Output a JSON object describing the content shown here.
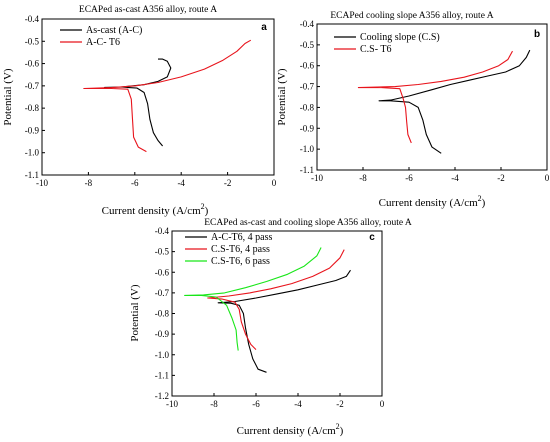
{
  "chart_data": [
    {
      "type": "line",
      "panel_label": "a",
      "title": "ECAPed as-cast A356 alloy, route A",
      "xlabel": "Current density (A/cm2)",
      "xlabel_main": "Current density (A/cm",
      "xlabel_sup": "2",
      "xlabel_end": ")",
      "ylabel": "Potential (V)",
      "xlim": [
        -10,
        0
      ],
      "ylim": [
        -1.1,
        -0.4
      ],
      "xticks": [
        "-10",
        "-8",
        "-6",
        "-4",
        "-2",
        "0"
      ],
      "xtick_values": [
        -10,
        -8,
        -6,
        -4,
        -2,
        0
      ],
      "yticks": [
        "-1.1",
        "-1.0",
        "-0.9",
        "-0.8",
        "-0.7",
        "-0.6",
        "-0.5",
        "-0.4"
      ],
      "ytick_values": [
        -1.1,
        -1.0,
        -0.9,
        -0.8,
        -0.7,
        -0.6,
        -0.5,
        -0.4
      ],
      "legend_position": "top-left",
      "series": [
        {
          "name": "As-cast (A-C)",
          "color": "#000000",
          "points": [
            [
              -5.0,
              -0.58
            ],
            [
              -4.8,
              -0.58
            ],
            [
              -4.6,
              -0.59
            ],
            [
              -4.45,
              -0.62
            ],
            [
              -4.6,
              -0.66
            ],
            [
              -5.0,
              -0.68
            ],
            [
              -5.6,
              -0.695
            ],
            [
              -6.6,
              -0.705
            ],
            [
              -7.3,
              -0.707
            ],
            [
              -6.6,
              -0.705
            ],
            [
              -5.9,
              -0.71
            ],
            [
              -5.6,
              -0.73
            ],
            [
              -5.45,
              -0.78
            ],
            [
              -5.35,
              -0.85
            ],
            [
              -5.2,
              -0.91
            ],
            [
              -5.0,
              -0.945
            ],
            [
              -4.8,
              -0.97
            ]
          ]
        },
        {
          "name": "A-C- T6",
          "color": "#e8141c",
          "points": [
            [
              -1.0,
              -0.495
            ],
            [
              -1.25,
              -0.51
            ],
            [
              -1.6,
              -0.545
            ],
            [
              -2.2,
              -0.585
            ],
            [
              -3.0,
              -0.625
            ],
            [
              -4.0,
              -0.66
            ],
            [
              -5.0,
              -0.685
            ],
            [
              -6.0,
              -0.7
            ],
            [
              -7.0,
              -0.708
            ],
            [
              -8.2,
              -0.712
            ],
            [
              -7.0,
              -0.712
            ],
            [
              -6.3,
              -0.715
            ],
            [
              -6.15,
              -0.76
            ],
            [
              -6.1,
              -0.85
            ],
            [
              -6.05,
              -0.93
            ],
            [
              -5.85,
              -0.975
            ],
            [
              -5.5,
              -0.995
            ]
          ]
        }
      ]
    },
    {
      "type": "line",
      "panel_label": "b",
      "title": "ECAPed cooling slope A356 alloy, route A",
      "xlabel": "Current density (A/cm2)",
      "xlabel_main": "Current density (A/cm",
      "xlabel_sup": "2",
      "xlabel_end": ")",
      "ylabel": "Potential (V)",
      "xlim": [
        -10,
        0
      ],
      "ylim": [
        -1.1,
        -0.4
      ],
      "xticks": [
        "-10",
        "-8",
        "-6",
        "-4",
        "-2",
        "0"
      ],
      "xtick_values": [
        -10,
        -8,
        -6,
        -4,
        -2,
        0
      ],
      "yticks": [
        "-1.1",
        "-1.0",
        "-0.9",
        "-0.8",
        "-0.7",
        "-0.6",
        "-0.5",
        "-0.4"
      ],
      "ytick_values": [
        -1.1,
        -1.0,
        -0.9,
        -0.8,
        -0.7,
        -0.6,
        -0.5,
        -0.4
      ],
      "legend_position": "top-left",
      "series": [
        {
          "name": "Cooling slope (C.S)",
          "color": "#000000",
          "points": [
            [
              -0.75,
              -0.525
            ],
            [
              -0.9,
              -0.56
            ],
            [
              -1.2,
              -0.6
            ],
            [
              -1.8,
              -0.63
            ],
            [
              -2.6,
              -0.65
            ],
            [
              -3.4,
              -0.67
            ],
            [
              -4.2,
              -0.69
            ],
            [
              -5.0,
              -0.715
            ],
            [
              -6.0,
              -0.745
            ],
            [
              -6.8,
              -0.765
            ],
            [
              -7.3,
              -0.768
            ],
            [
              -6.8,
              -0.768
            ],
            [
              -6.0,
              -0.775
            ],
            [
              -5.6,
              -0.8
            ],
            [
              -5.4,
              -0.86
            ],
            [
              -5.25,
              -0.93
            ],
            [
              -5.0,
              -0.99
            ],
            [
              -4.6,
              -1.02
            ]
          ]
        },
        {
          "name": "C.S- T6",
          "color": "#e8141c",
          "points": [
            [
              -1.5,
              -0.53
            ],
            [
              -1.7,
              -0.57
            ],
            [
              -2.1,
              -0.6
            ],
            [
              -2.8,
              -0.63
            ],
            [
              -3.6,
              -0.655
            ],
            [
              -4.6,
              -0.675
            ],
            [
              -5.6,
              -0.69
            ],
            [
              -6.6,
              -0.7
            ],
            [
              -8.2,
              -0.705
            ],
            [
              -7.2,
              -0.705
            ],
            [
              -6.4,
              -0.71
            ],
            [
              -6.25,
              -0.76
            ],
            [
              -6.15,
              -0.8
            ],
            [
              -6.1,
              -0.87
            ],
            [
              -6.05,
              -0.93
            ],
            [
              -5.9,
              -0.97
            ]
          ]
        }
      ]
    },
    {
      "type": "line",
      "panel_label": "c",
      "title": "ECAPed as-cast and cooling slope A356 alloy, route A",
      "xlabel": "Current density (A/cm2)",
      "xlabel_main": "Current density (A/cm",
      "xlabel_sup": "2",
      "xlabel_end": ")",
      "ylabel": "Potential (V)",
      "xlim": [
        -10,
        0
      ],
      "ylim": [
        -1.2,
        -0.4
      ],
      "xticks": [
        "-10",
        "-8",
        "-6",
        "-4",
        "-2",
        "0"
      ],
      "xtick_values": [
        -10,
        -8,
        -6,
        -4,
        -2,
        0
      ],
      "yticks": [
        "-1.2",
        "-1.1",
        "-1.0",
        "-0.9",
        "-0.8",
        "-0.7",
        "-0.6",
        "-0.5",
        "-0.4"
      ],
      "ytick_values": [
        -1.2,
        -1.1,
        -1.0,
        -0.9,
        -0.8,
        -0.7,
        -0.6,
        -0.5,
        -0.4
      ],
      "legend_position": "top-left",
      "series": [
        {
          "name": "A-C-T6, 4 pass",
          "color": "#000000",
          "points": [
            [
              -1.5,
              -0.59
            ],
            [
              -1.7,
              -0.62
            ],
            [
              -2.2,
              -0.64
            ],
            [
              -3.0,
              -0.66
            ],
            [
              -4.0,
              -0.685
            ],
            [
              -5.0,
              -0.705
            ],
            [
              -6.0,
              -0.725
            ],
            [
              -7.0,
              -0.742
            ],
            [
              -7.8,
              -0.748
            ],
            [
              -7.2,
              -0.75
            ],
            [
              -6.8,
              -0.76
            ],
            [
              -6.6,
              -0.8
            ],
            [
              -6.5,
              -0.87
            ],
            [
              -6.35,
              -0.95
            ],
            [
              -6.15,
              -1.02
            ],
            [
              -5.9,
              -1.07
            ],
            [
              -5.5,
              -1.085
            ]
          ]
        },
        {
          "name": "C.S-T6, 4 pass",
          "color": "#e8141c",
          "points": [
            [
              -1.8,
              -0.49
            ],
            [
              -2.0,
              -0.53
            ],
            [
              -2.5,
              -0.58
            ],
            [
              -3.3,
              -0.62
            ],
            [
              -4.3,
              -0.655
            ],
            [
              -5.3,
              -0.68
            ],
            [
              -6.3,
              -0.7
            ],
            [
              -7.3,
              -0.715
            ],
            [
              -8.3,
              -0.725
            ],
            [
              -7.6,
              -0.73
            ],
            [
              -7.0,
              -0.745
            ],
            [
              -6.8,
              -0.78
            ],
            [
              -6.7,
              -0.84
            ],
            [
              -6.5,
              -0.9
            ],
            [
              -6.25,
              -0.95
            ],
            [
              -6.0,
              -0.975
            ]
          ]
        },
        {
          "name": "C.S-T6, 6 pass",
          "color": "#19e619",
          "points": [
            [
              -2.9,
              -0.48
            ],
            [
              -3.1,
              -0.52
            ],
            [
              -3.7,
              -0.57
            ],
            [
              -4.5,
              -0.61
            ],
            [
              -5.5,
              -0.645
            ],
            [
              -6.5,
              -0.675
            ],
            [
              -7.5,
              -0.7
            ],
            [
              -8.5,
              -0.71
            ],
            [
              -9.4,
              -0.712
            ],
            [
              -8.6,
              -0.712
            ],
            [
              -7.9,
              -0.72
            ],
            [
              -7.4,
              -0.76
            ],
            [
              -7.15,
              -0.82
            ],
            [
              -6.95,
              -0.88
            ],
            [
              -6.9,
              -0.94
            ],
            [
              -6.85,
              -0.98
            ]
          ]
        }
      ]
    }
  ]
}
